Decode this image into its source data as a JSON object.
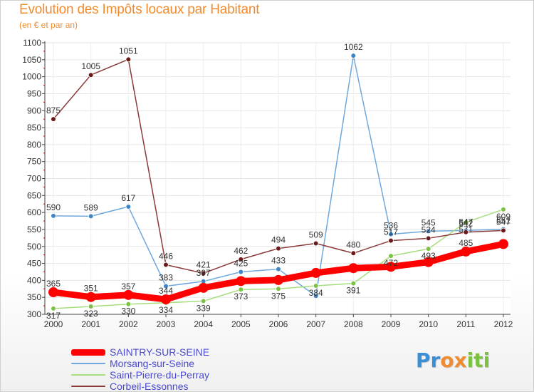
{
  "header": {
    "title": "Evolution des Impôts locaux par Habitant",
    "subtitle": "(en € et par an)"
  },
  "logo": {
    "text": "Proxiti",
    "letters": [
      "P",
      "r",
      "o",
      "x",
      "i",
      "t",
      "i"
    ],
    "letter_colors": [
      "#3b8fd6",
      "#3b8fd6",
      "#f08c30",
      "#f08c30",
      "#7cc242",
      "#7cc242",
      "#7cc242"
    ]
  },
  "chart_data": {
    "type": "line",
    "title": "Evolution des Impôts locaux par Habitant",
    "subtitle": "(en € et par an)",
    "xlabel": "",
    "ylabel": "",
    "x": [
      "2000",
      "2001",
      "2002",
      "2003",
      "2004",
      "2005",
      "2006",
      "2007",
      "2008",
      "2009",
      "2010",
      "2011",
      "2012"
    ],
    "ylim": [
      300,
      1100
    ],
    "yticks": [
      300,
      350,
      400,
      450,
      500,
      550,
      600,
      650,
      700,
      750,
      800,
      850,
      900,
      950,
      1000,
      1050,
      1100
    ],
    "grid": true,
    "legend_position": "bottom-left",
    "series": [
      {
        "name": "SAINTRY-SUR-SEINE",
        "color": "#ff0000",
        "marker_color": "#ff0000",
        "emphasis": true,
        "values": [
          365,
          351,
          357,
          344,
          378,
          398,
          401,
          422,
          436,
          440,
          454,
          485,
          507
        ],
        "labels": [
          "365",
          "351",
          "357",
          "344",
          "",
          "",
          "",
          "",
          "",
          "",
          "",
          "485",
          ""
        ]
      },
      {
        "name": "Morsang-sur-Seine",
        "color": "#6fa8dc",
        "marker_color": "#3d85c6",
        "emphasis": false,
        "values": [
          590,
          589,
          617,
          383,
          397,
          425,
          433,
          354,
          1062,
          536,
          545,
          547,
          551
        ],
        "labels": [
          "590",
          "589",
          "617",
          "383",
          "397",
          "425",
          "433",
          "",
          "1062",
          "536",
          "545",
          "547",
          "551"
        ]
      },
      {
        "name": "Saint-Pierre-du-Perray",
        "color": "#a6de7e",
        "marker_color": "#7cc242",
        "emphasis": false,
        "values": [
          317,
          323,
          330,
          334,
          339,
          373,
          375,
          384,
          391,
          472,
          493,
          571,
          609
        ],
        "labels": [
          "317",
          "323",
          "330",
          "334",
          "339",
          "373",
          "375",
          "384",
          "391",
          "472",
          "493",
          "571",
          "609"
        ]
      },
      {
        "name": "Corbeil-Essonnes",
        "color": "#8b3a3a",
        "marker_color": "#6b1a1a",
        "emphasis": false,
        "values": [
          875,
          1005,
          1051,
          446,
          421,
          462,
          494,
          509,
          480,
          517,
          524,
          542,
          547
        ],
        "labels": [
          "875",
          "1005",
          "1051",
          "446",
          "421",
          "462",
          "494",
          "509",
          "480",
          "517",
          "524",
          "542",
          "547"
        ]
      }
    ]
  }
}
